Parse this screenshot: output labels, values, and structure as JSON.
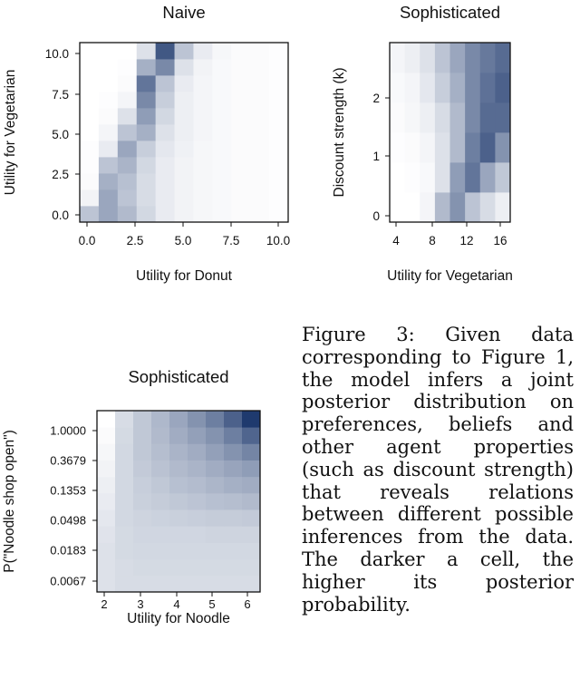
{
  "caption": "Figure 3: Given data corresponding to Figure 1, the model infers a joint posterior distribution on preferences, beliefs and other agent properties (such as discount strength) that reveals relations between different possible inferences from the data. The darker a cell, the higher its posterior probability.",
  "color_scale": {
    "low": "#ffffff",
    "high": "#1f3a6e"
  },
  "chart_data": [
    {
      "type": "heatmap",
      "title": "Naive",
      "xlabel": "Utility for Donut",
      "ylabel": "Utility for Vegetarian",
      "x_tick_labels": [
        "0.0",
        "2.5",
        "5.0",
        "7.5",
        "10.0"
      ],
      "y_tick_labels": [
        "0.0",
        "2.5",
        "5.0",
        "7.5",
        "10.0"
      ],
      "x_values": [
        0,
        1,
        2,
        3,
        4,
        5,
        6,
        7,
        8,
        9,
        10
      ],
      "y_values": [
        0,
        1,
        2,
        3,
        4,
        5,
        6,
        7,
        8,
        9,
        10
      ],
      "xlim": [
        0,
        10
      ],
      "ylim": [
        0,
        10
      ],
      "values": [
        [
          0.3,
          0.45,
          0.35,
          0.2,
          0.1,
          0.06,
          0.04,
          0.03,
          0.02,
          0.02,
          0.01
        ],
        [
          0.06,
          0.45,
          0.3,
          0.18,
          0.1,
          0.06,
          0.04,
          0.03,
          0.02,
          0.02,
          0.01
        ],
        [
          0.02,
          0.4,
          0.32,
          0.18,
          0.1,
          0.06,
          0.04,
          0.03,
          0.02,
          0.02,
          0.01
        ],
        [
          0.01,
          0.3,
          0.38,
          0.2,
          0.1,
          0.06,
          0.04,
          0.03,
          0.02,
          0.02,
          0.01
        ],
        [
          0.01,
          0.1,
          0.45,
          0.25,
          0.12,
          0.07,
          0.04,
          0.03,
          0.02,
          0.02,
          0.01
        ],
        [
          0.0,
          0.05,
          0.3,
          0.4,
          0.15,
          0.08,
          0.05,
          0.03,
          0.02,
          0.02,
          0.01
        ],
        [
          0.0,
          0.02,
          0.15,
          0.5,
          0.2,
          0.08,
          0.05,
          0.03,
          0.02,
          0.02,
          0.01
        ],
        [
          0.0,
          0.01,
          0.05,
          0.6,
          0.25,
          0.08,
          0.05,
          0.03,
          0.02,
          0.02,
          0.01
        ],
        [
          0.0,
          0.0,
          0.02,
          0.7,
          0.3,
          0.1,
          0.05,
          0.03,
          0.02,
          0.02,
          0.01
        ],
        [
          0.0,
          0.0,
          0.01,
          0.4,
          0.6,
          0.15,
          0.06,
          0.03,
          0.02,
          0.02,
          0.01
        ],
        [
          0.0,
          0.0,
          0.0,
          0.15,
          0.85,
          0.3,
          0.1,
          0.04,
          0.02,
          0.02,
          0.01
        ]
      ]
    },
    {
      "type": "heatmap",
      "title": "Sophisticated",
      "xlabel": "Utility for Vegetarian",
      "ylabel": "Discount strength (k)",
      "x_tick_labels": [
        "4",
        "8",
        "12",
        "16"
      ],
      "y_tick_labels": [
        "0",
        "1",
        "2"
      ],
      "x_values": [
        2,
        4,
        6,
        8,
        10,
        12,
        14,
        16
      ],
      "y_values": [
        0,
        0.5,
        1,
        1.5,
        2,
        2.5
      ],
      "xlim": [
        2,
        16
      ],
      "ylim": [
        0,
        2.5
      ],
      "values": [
        [
          0.0,
          0.0,
          0.05,
          0.35,
          0.55,
          0.3,
          0.18,
          0.08
        ],
        [
          0.0,
          0.01,
          0.03,
          0.15,
          0.5,
          0.7,
          0.45,
          0.28
        ],
        [
          0.01,
          0.02,
          0.05,
          0.15,
          0.35,
          0.65,
          0.8,
          0.55
        ],
        [
          0.02,
          0.04,
          0.08,
          0.18,
          0.35,
          0.6,
          0.75,
          0.75
        ],
        [
          0.03,
          0.05,
          0.12,
          0.25,
          0.4,
          0.6,
          0.72,
          0.8
        ],
        [
          0.05,
          0.08,
          0.15,
          0.3,
          0.45,
          0.6,
          0.68,
          0.75
        ]
      ]
    },
    {
      "type": "heatmap",
      "title": "Sophisticated",
      "xlabel": "Utility for Noodle",
      "ylabel": "P(\"Noodle shop open\")",
      "x_tick_labels": [
        "2",
        "3",
        "4",
        "5",
        "6"
      ],
      "y_tick_labels": [
        "0.0067",
        "0.0183",
        "0.0498",
        "0.1353",
        "0.3679",
        "1.0000"
      ],
      "x_values": [
        2,
        2.5,
        3,
        3.5,
        4,
        4.5,
        5,
        5.5,
        6
      ],
      "y_values": [
        0.0067,
        0.0111,
        0.0183,
        0.0302,
        0.0498,
        0.0821,
        0.1353,
        0.2231,
        0.3679,
        0.6065,
        1.0
      ],
      "xlim": [
        2,
        6
      ],
      "ylim": [
        0.0067,
        1.0
      ],
      "y_scale": "log",
      "values": [
        [
          0.15,
          0.18,
          0.18,
          0.18,
          0.18,
          0.18,
          0.18,
          0.18,
          0.18
        ],
        [
          0.15,
          0.18,
          0.19,
          0.19,
          0.19,
          0.19,
          0.19,
          0.19,
          0.19
        ],
        [
          0.15,
          0.19,
          0.2,
          0.2,
          0.2,
          0.2,
          0.2,
          0.2,
          0.2
        ],
        [
          0.14,
          0.19,
          0.21,
          0.21,
          0.21,
          0.21,
          0.22,
          0.22,
          0.22
        ],
        [
          0.12,
          0.2,
          0.22,
          0.23,
          0.24,
          0.25,
          0.26,
          0.26,
          0.27
        ],
        [
          0.1,
          0.2,
          0.24,
          0.26,
          0.28,
          0.3,
          0.32,
          0.33,
          0.35
        ],
        [
          0.08,
          0.2,
          0.25,
          0.28,
          0.32,
          0.34,
          0.37,
          0.4,
          0.42
        ],
        [
          0.06,
          0.2,
          0.27,
          0.31,
          0.35,
          0.38,
          0.42,
          0.46,
          0.5
        ],
        [
          0.04,
          0.2,
          0.28,
          0.33,
          0.38,
          0.42,
          0.48,
          0.55,
          0.62
        ],
        [
          0.02,
          0.19,
          0.28,
          0.35,
          0.42,
          0.48,
          0.55,
          0.65,
          0.78
        ],
        [
          0.0,
          0.18,
          0.28,
          0.36,
          0.45,
          0.55,
          0.65,
          0.8,
          1.0
        ]
      ]
    }
  ]
}
